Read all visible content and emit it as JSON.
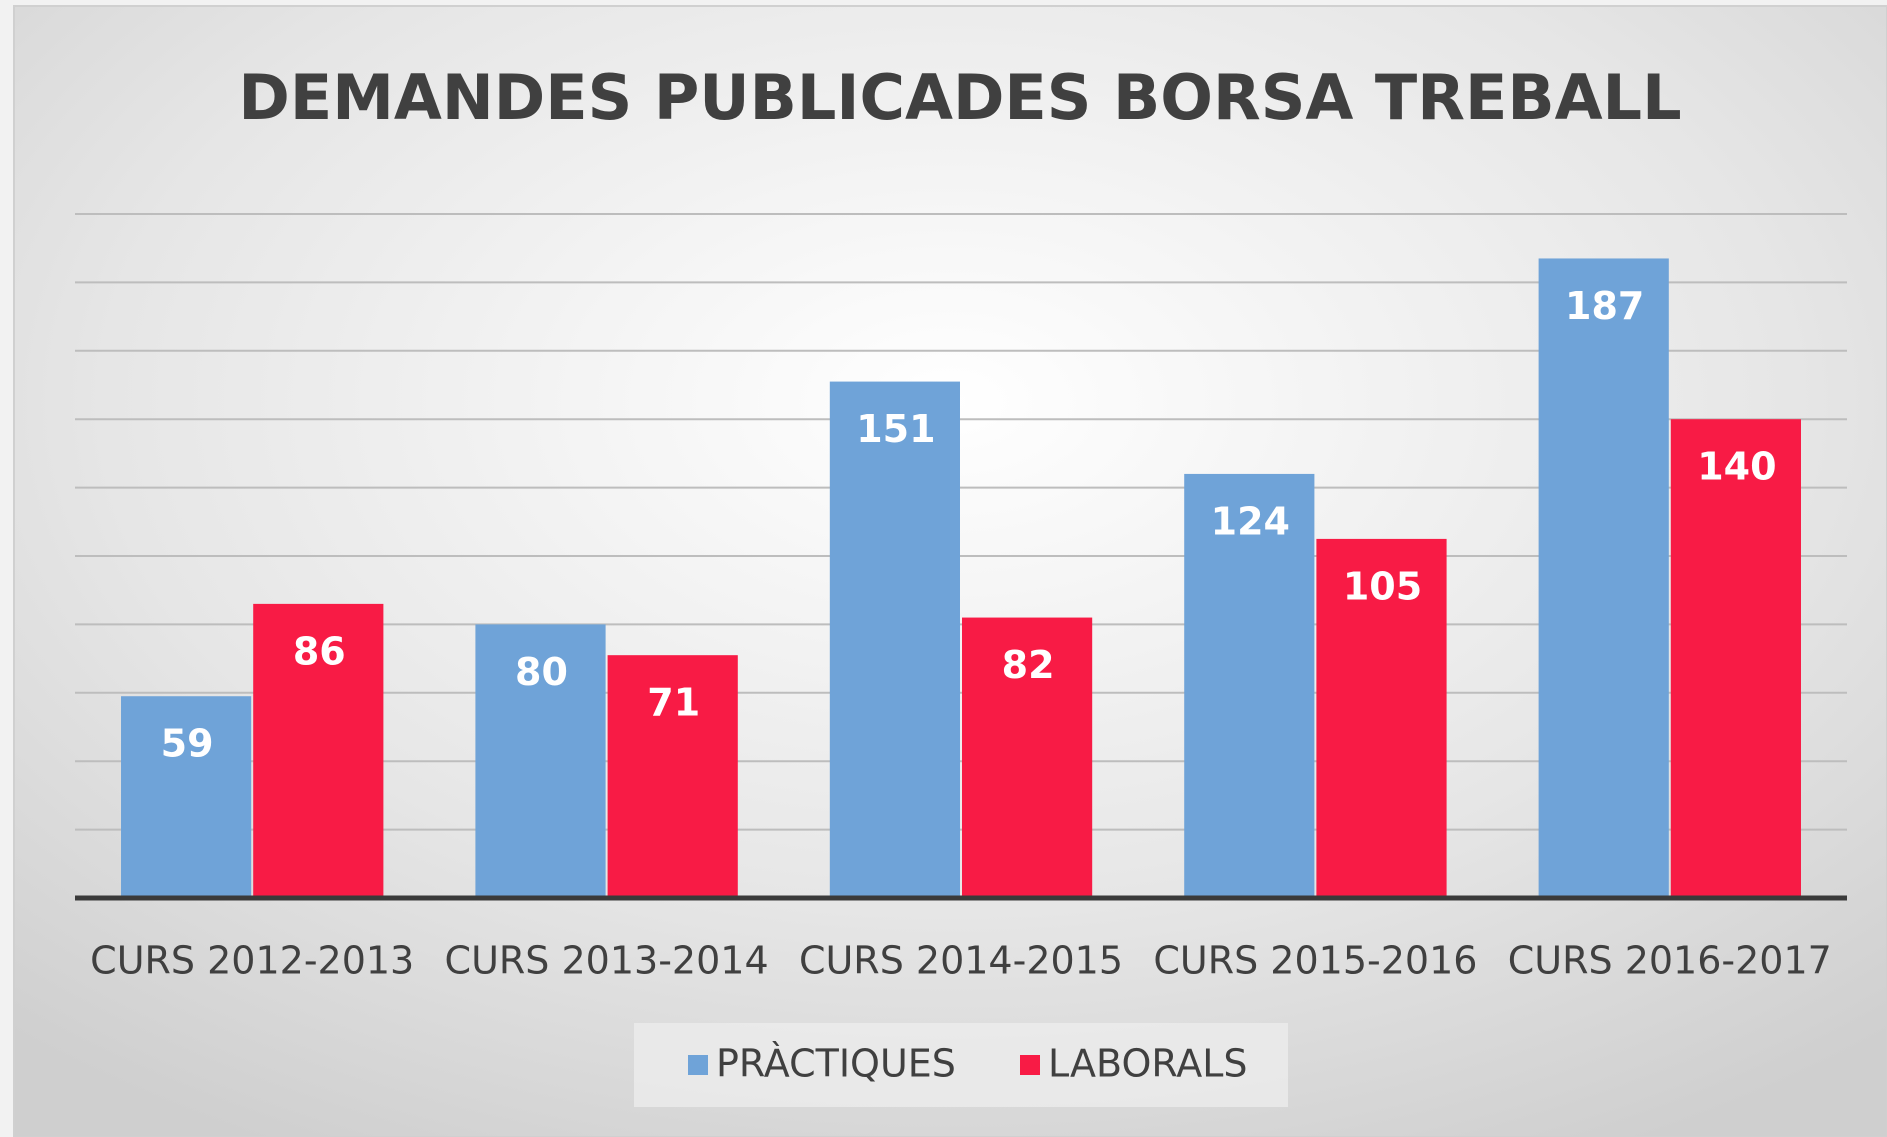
{
  "chart_data": {
    "type": "bar",
    "title": "DEMANDES PUBLICADES BORSA TREBALL",
    "categories": [
      "CURS 2012-2013",
      "CURS 2013-2014",
      "CURS 2014-2015",
      "CURS 2015-2016",
      "CURS 2016-2017"
    ],
    "series": [
      {
        "name": "PRÀCTIQUES",
        "color": "#6fa3d8",
        "values": [
          59,
          80,
          151,
          124,
          187
        ]
      },
      {
        "name": "LABORALS",
        "color": "#f81b45",
        "values": [
          86,
          71,
          82,
          105,
          140
        ]
      }
    ],
    "ylim": [
      0,
      200
    ],
    "yticks": [
      0,
      20,
      40,
      60,
      80,
      100,
      120,
      140,
      160,
      180,
      200
    ],
    "grid": true,
    "legend": "bottom"
  }
}
